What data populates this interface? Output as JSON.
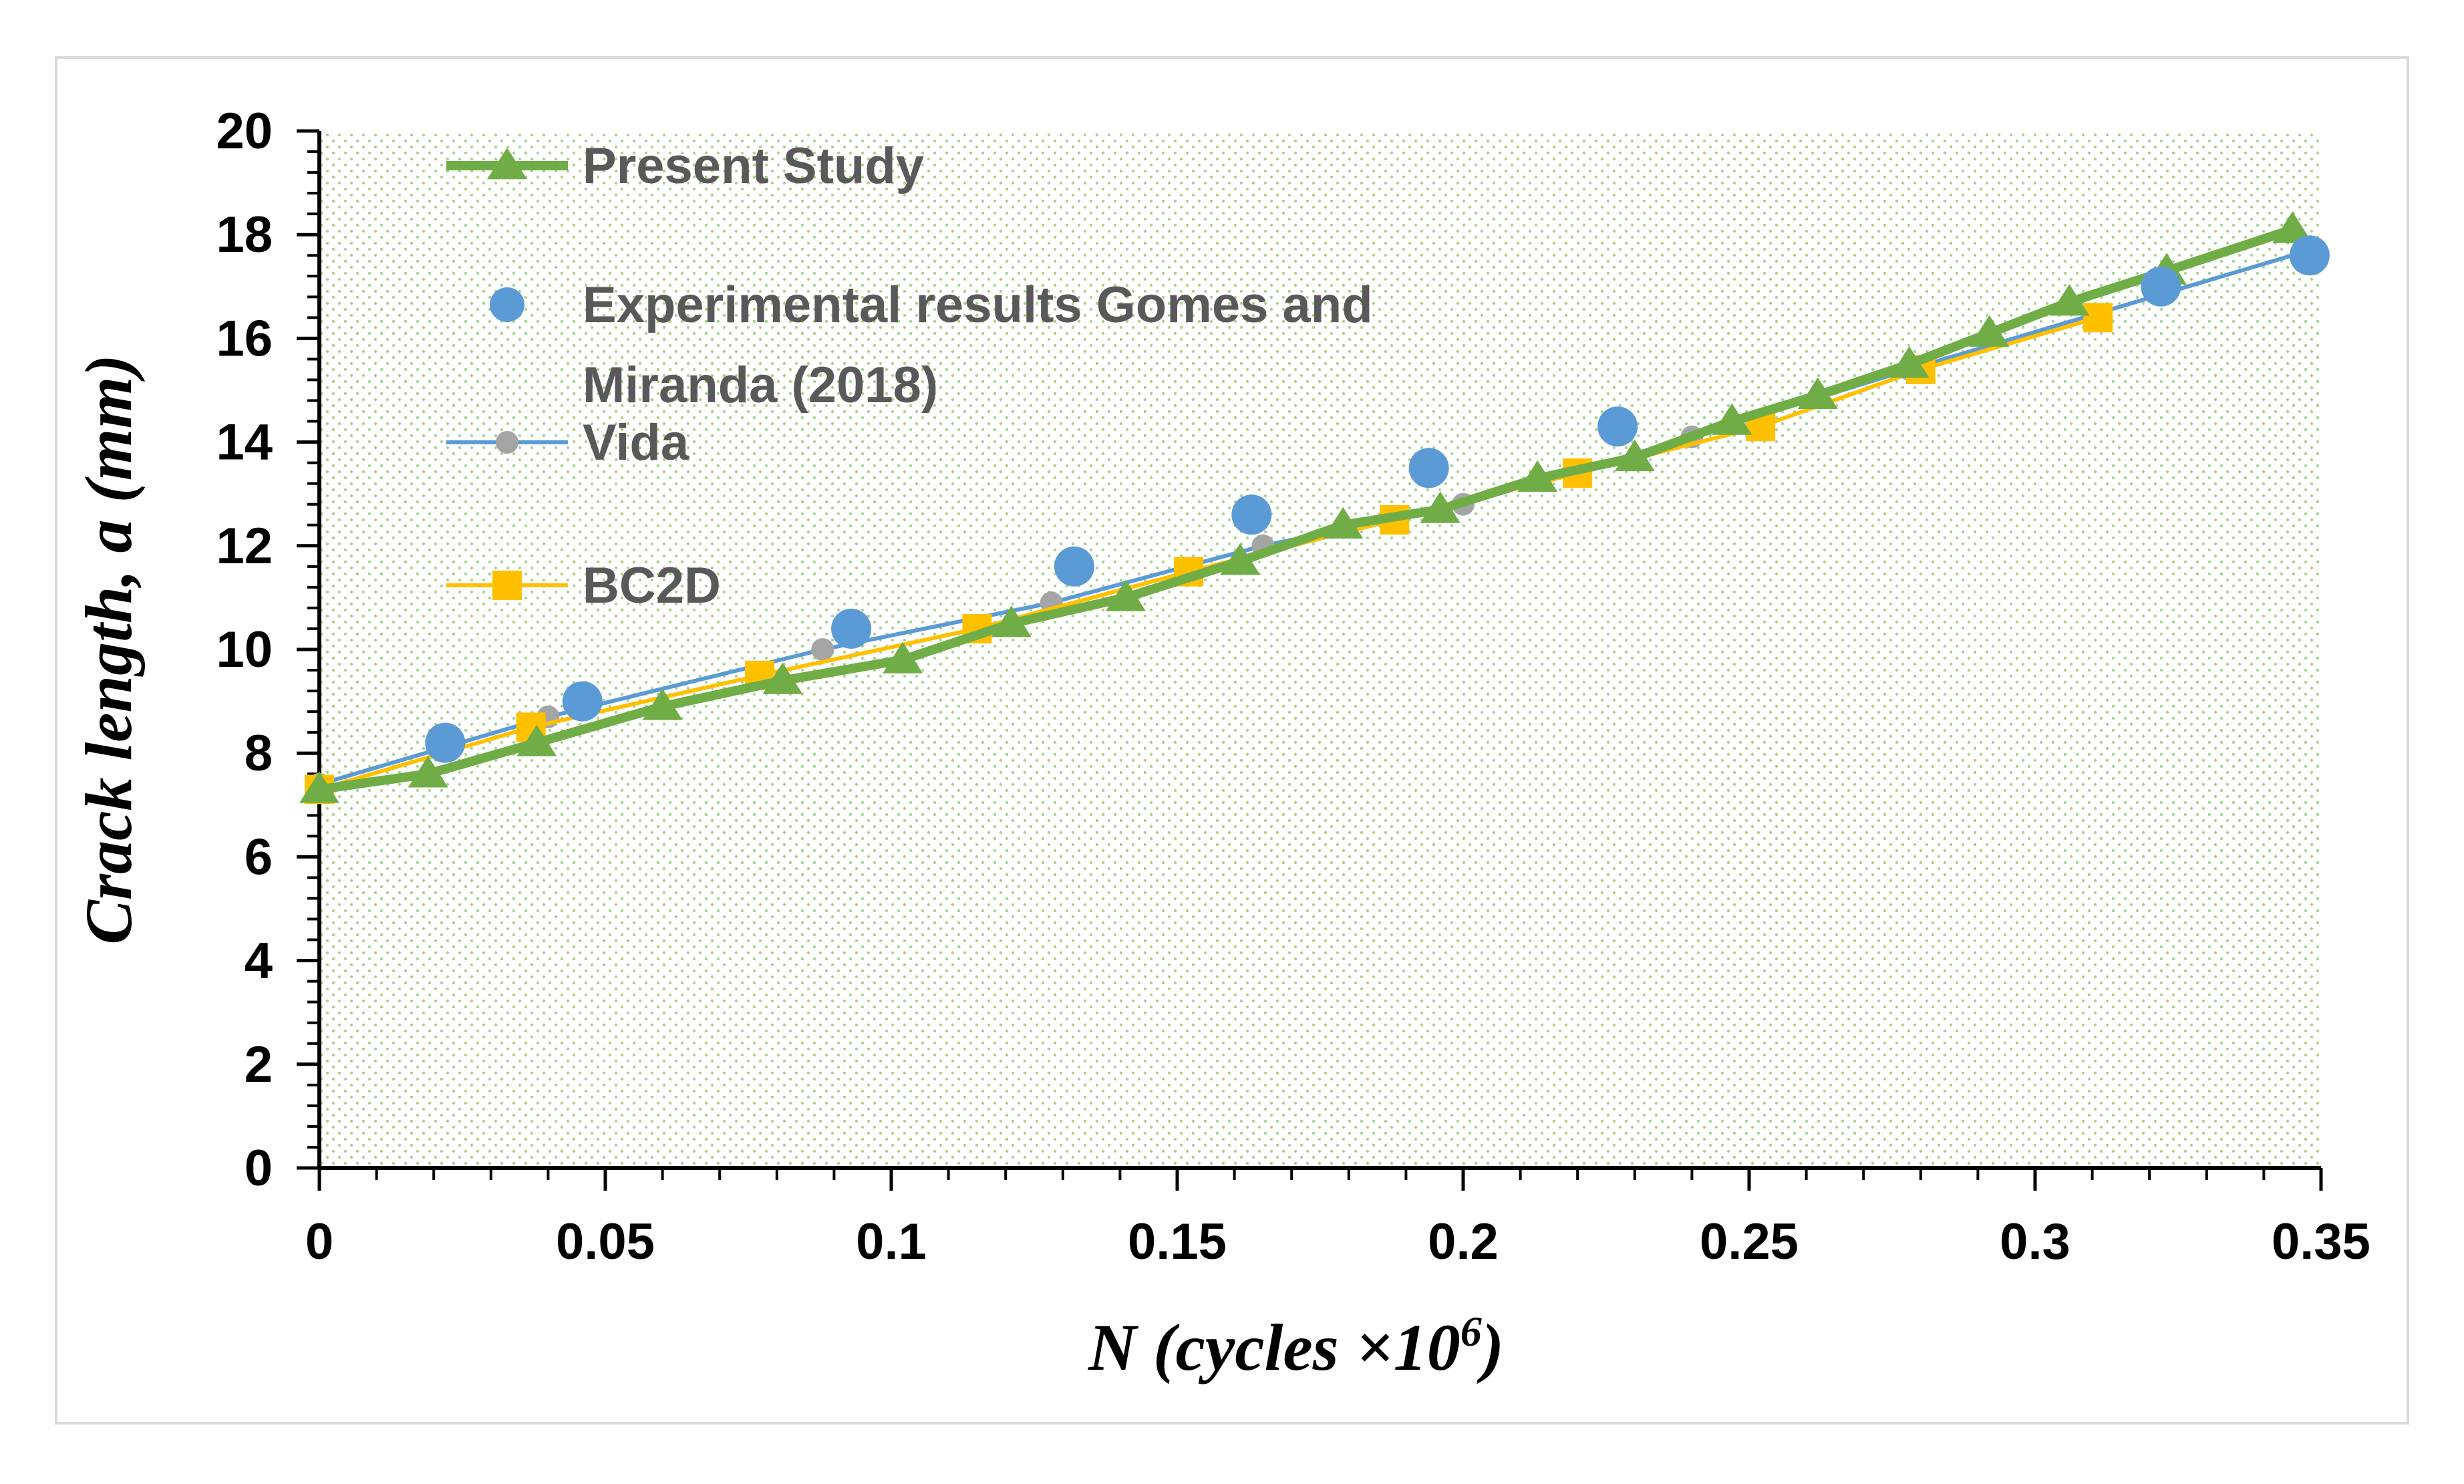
{
  "chart_data": {
    "type": "line",
    "xlabel_main": "N (cycles ×10",
    "xlabel_sup": "6",
    "xlabel_end": ")",
    "ylabel": "Crack length, a (mm)",
    "xlim": [
      0,
      0.35
    ],
    "ylim": [
      0,
      20
    ],
    "x_ticks": [
      "0",
      "0.05",
      "0.1",
      "0.15",
      "0.2",
      "0.25",
      "0.3",
      "0.35"
    ],
    "y_ticks": [
      "0",
      "2",
      "4",
      "6",
      "8",
      "10",
      "12",
      "14",
      "16",
      "18",
      "20"
    ],
    "x_tick_values": [
      0,
      0.05,
      0.1,
      0.15,
      0.2,
      0.25,
      0.3,
      0.35
    ],
    "y_tick_values": [
      0,
      2,
      4,
      6,
      8,
      10,
      12,
      14,
      16,
      18,
      20
    ],
    "legend_position": "top-left",
    "grid": false,
    "background_pattern": "green-dotted",
    "series": [
      {
        "name": "Present Study",
        "color": "#70ad47",
        "marker": "triangle",
        "line": true,
        "x": [
          0,
          0.019,
          0.038,
          0.06,
          0.081,
          0.102,
          0.121,
          0.141,
          0.161,
          0.179,
          0.196,
          0.213,
          0.23,
          0.247,
          0.262,
          0.278,
          0.292,
          0.306,
          0.323,
          0.345
        ],
        "y": [
          7.3,
          7.6,
          8.2,
          8.9,
          9.4,
          9.8,
          10.5,
          11.0,
          11.7,
          12.4,
          12.7,
          13.3,
          13.7,
          14.4,
          14.9,
          15.5,
          16.1,
          16.7,
          17.3,
          18.1
        ]
      },
      {
        "name": "Experimental results Gomes and Miranda (2018)",
        "color": "#5b9bd5",
        "marker": "circle",
        "line": false,
        "x": [
          0.022,
          0.046,
          0.093,
          0.132,
          0.163,
          0.194,
          0.227,
          0.322,
          0.348
        ],
        "y": [
          8.2,
          9.0,
          10.4,
          11.6,
          12.6,
          13.5,
          14.3,
          17.0,
          17.6
        ]
      },
      {
        "name": "Vida",
        "color": "#5b9bd5",
        "marker": "circle-small-gray",
        "marker_color": "#a5a5a5",
        "line": true,
        "x": [
          0,
          0.04,
          0.088,
          0.128,
          0.165,
          0.2,
          0.24,
          0.278,
          0.348
        ],
        "y": [
          7.4,
          8.7,
          10.0,
          10.9,
          12.0,
          12.8,
          14.1,
          15.4,
          17.7
        ]
      },
      {
        "name": "BC2D",
        "color": "#ffc000",
        "marker": "square",
        "line": true,
        "x": [
          0.0,
          0.037,
          0.077,
          0.115,
          0.152,
          0.188,
          0.22,
          0.252,
          0.28,
          0.311
        ],
        "y": [
          7.3,
          8.5,
          9.5,
          10.4,
          11.5,
          12.5,
          13.4,
          14.3,
          15.4,
          16.4
        ]
      }
    ],
    "legend": [
      {
        "label": "Present Study"
      },
      {
        "label_line1": "Experimental results Gomes and",
        "label_line2": "Miranda (2018)"
      },
      {
        "label": "Vida"
      },
      {
        "label": "BC2D"
      }
    ]
  }
}
